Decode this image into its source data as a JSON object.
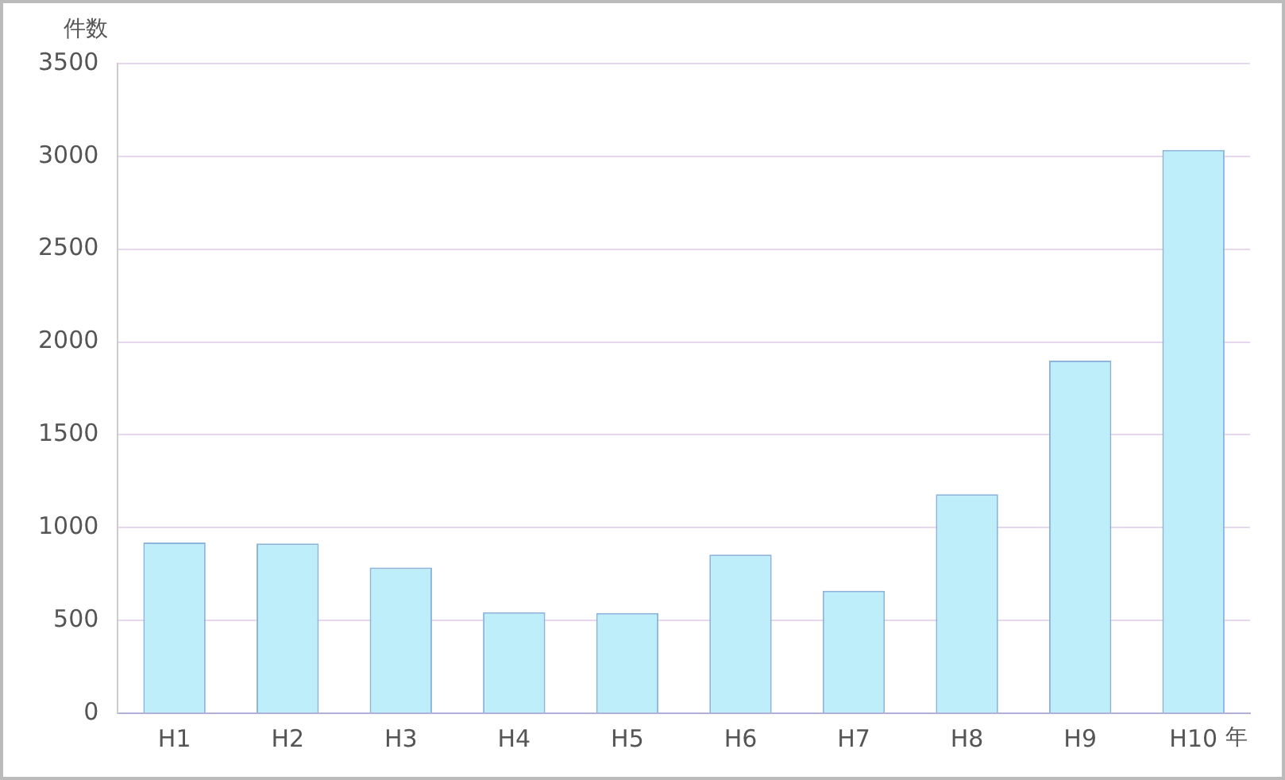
{
  "chart_data": {
    "type": "bar",
    "ylabel": "件数",
    "xlabel": "年",
    "categories": [
      "H1",
      "H2",
      "H3",
      "H4",
      "H5",
      "H6",
      "H7",
      "H8",
      "H9",
      "H10"
    ],
    "values": [
      920,
      915,
      785,
      545,
      540,
      855,
      660,
      1180,
      1900,
      3035
    ],
    "color": "#bdeef9",
    "ylim": [
      0,
      3500
    ],
    "yticks": [
      0,
      500,
      1000,
      1500,
      2000,
      2500,
      3000,
      3500
    ],
    "grid": "y",
    "legend": false
  }
}
